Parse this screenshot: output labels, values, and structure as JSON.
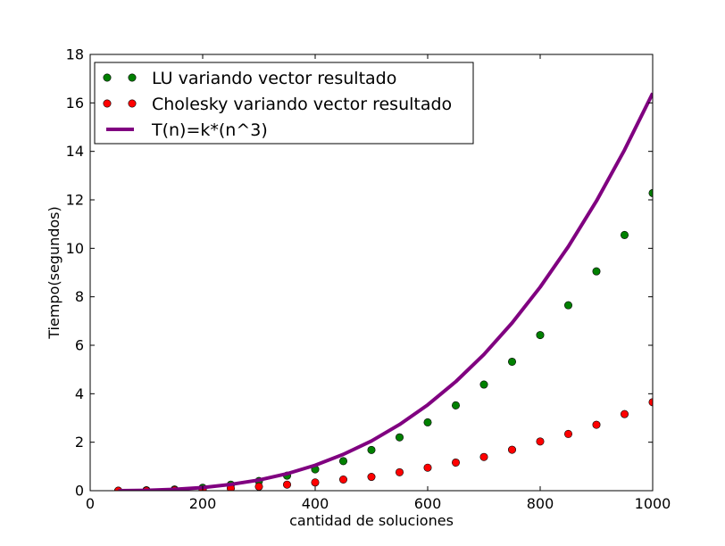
{
  "chart_data": {
    "type": "scatter",
    "title": "",
    "xlabel": "cantidad de soluciones",
    "ylabel": "Tiempo(segundos)",
    "xlim": [
      0,
      1000
    ],
    "ylim": [
      0,
      18
    ],
    "xticks": [
      0,
      200,
      400,
      600,
      800,
      1000
    ],
    "yticks": [
      0,
      2,
      4,
      6,
      8,
      10,
      12,
      14,
      16,
      18
    ],
    "grid": false,
    "legend_position": "top-left",
    "series": [
      {
        "name": "LU variando vector resultado",
        "kind": "scatter",
        "color": "#008000",
        "x": [
          50,
          100,
          150,
          200,
          250,
          300,
          350,
          400,
          450,
          500,
          550,
          600,
          650,
          700,
          750,
          800,
          850,
          900,
          950,
          1000
        ],
        "y": [
          0.0,
          0.02,
          0.05,
          0.12,
          0.25,
          0.4,
          0.62,
          0.88,
          1.22,
          1.68,
          2.2,
          2.82,
          3.52,
          4.38,
          5.32,
          6.42,
          7.65,
          9.05,
          10.55,
          12.28
        ]
      },
      {
        "name": "Cholesky variando vector resultado",
        "kind": "scatter",
        "color": "#ff0000",
        "x": [
          50,
          100,
          150,
          200,
          250,
          300,
          350,
          400,
          450,
          500,
          550,
          600,
          650,
          700,
          750,
          800,
          850,
          900,
          950,
          1000
        ],
        "y": [
          0.0,
          0.0,
          0.02,
          0.05,
          0.1,
          0.17,
          0.25,
          0.34,
          0.46,
          0.57,
          0.76,
          0.95,
          1.16,
          1.39,
          1.69,
          2.03,
          2.34,
          2.72,
          3.16,
          3.65
        ]
      },
      {
        "name": "T(n)=k*(n^3)",
        "kind": "line",
        "color": "#800080",
        "x": [
          50,
          100,
          150,
          200,
          250,
          300,
          350,
          400,
          450,
          500,
          550,
          600,
          650,
          700,
          750,
          800,
          850,
          900,
          950,
          1000
        ],
        "y": [
          0.002,
          0.016,
          0.055,
          0.13,
          0.26,
          0.44,
          0.7,
          1.05,
          1.5,
          2.05,
          2.73,
          3.54,
          4.5,
          5.62,
          6.92,
          8.4,
          10.07,
          11.95,
          14.06,
          16.4
        ]
      }
    ]
  }
}
